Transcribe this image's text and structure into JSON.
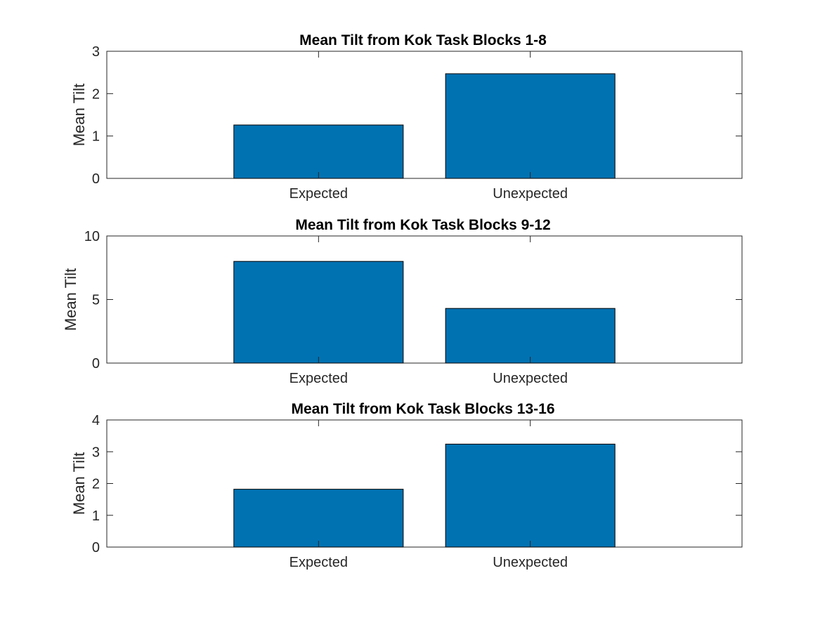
{
  "chart_data": [
    {
      "type": "bar",
      "title": "Mean Tilt from Kok Task Blocks 1-8",
      "ylabel": "Mean Tilt",
      "xlabel": "",
      "categories": [
        "Expected",
        "Unexpected"
      ],
      "values": [
        1.26,
        2.47
      ],
      "ylim": [
        0,
        3
      ],
      "yticks": [
        0,
        1,
        2,
        3
      ],
      "ytick_labels": [
        "0",
        "1",
        "2",
        "3"
      ],
      "grid": false
    },
    {
      "type": "bar",
      "title": "Mean Tilt from Kok Task Blocks 9-12",
      "ylabel": "Mean Tilt",
      "xlabel": "",
      "categories": [
        "Expected",
        "Unexpected"
      ],
      "values": [
        8.0,
        4.3
      ],
      "ylim": [
        0,
        10
      ],
      "yticks": [
        0,
        5,
        10
      ],
      "ytick_labels": [
        "0",
        "5",
        "10"
      ],
      "grid": false
    },
    {
      "type": "bar",
      "title": "Mean Tilt from Kok Task Blocks 13-16",
      "ylabel": "Mean Tilt",
      "xlabel": "",
      "categories": [
        "Expected",
        "Unexpected"
      ],
      "values": [
        1.82,
        3.24
      ],
      "ylim": [
        0,
        4
      ],
      "yticks": [
        0,
        1,
        2,
        3,
        4
      ],
      "ytick_labels": [
        "0",
        "1",
        "2",
        "3",
        "4"
      ],
      "grid": false
    }
  ],
  "colors": {
    "bar": "#0072B2",
    "axis": "#262626",
    "background": "#ffffff"
  }
}
